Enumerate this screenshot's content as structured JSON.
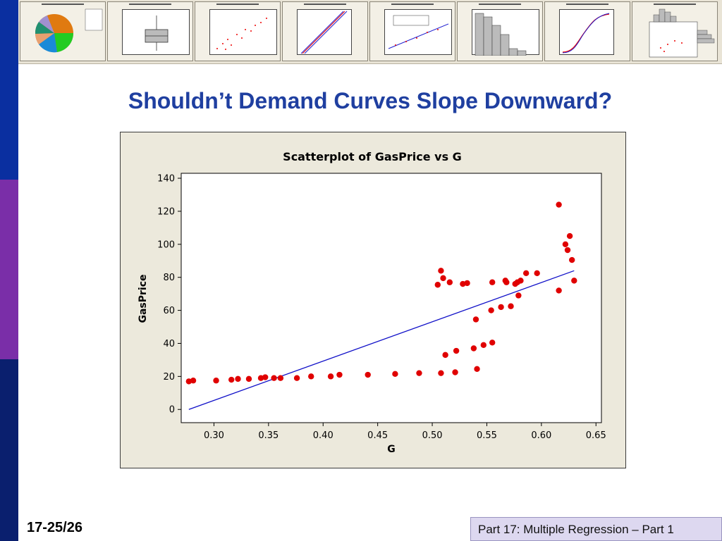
{
  "slide": {
    "title": "Shouldn’t Demand Curves Slope Downward?",
    "page_number": "17-25/26",
    "footer": "Part 17: Multiple Regression – Part 1"
  },
  "colors": {
    "title_blue": "#1f3fa0",
    "sidebar_blue": "#0a2fa0",
    "sidebar_purple": "#7a2ea8",
    "sidebar_navy": "#0a1f6e",
    "point_red": "#e00000",
    "fit_line_blue": "#1010c8"
  },
  "thumbnails": {
    "count": 8,
    "icons": [
      "pie-chart-icon",
      "boxplot-icon",
      "scatterplot-icon",
      "probability-plot-icon",
      "regression-scatterplot-icon",
      "histogram-icon",
      "empirical-cdf-icon",
      "marginal-plot-icon"
    ]
  },
  "chart_data": {
    "type": "scatter",
    "title": "Scatterplot of GasPrice vs G",
    "xlabel": "G",
    "ylabel": "GasPrice",
    "xlim": [
      0.27,
      0.655
    ],
    "ylim": [
      -8,
      143
    ],
    "xticks": [
      0.3,
      0.35,
      0.4,
      0.45,
      0.5,
      0.55,
      0.6,
      0.65
    ],
    "xtick_labels": [
      "0.30",
      "0.35",
      "0.40",
      "0.45",
      "0.50",
      "0.55",
      "0.60",
      "0.65"
    ],
    "yticks": [
      0,
      20,
      40,
      60,
      80,
      100,
      120,
      140
    ],
    "ytick_labels": [
      "0",
      "20",
      "40",
      "60",
      "80",
      "100",
      "120",
      "140"
    ],
    "grid": false,
    "points": [
      [
        0.277,
        17
      ],
      [
        0.281,
        17.5
      ],
      [
        0.302,
        17.5
      ],
      [
        0.316,
        18
      ],
      [
        0.322,
        18.5
      ],
      [
        0.332,
        18.5
      ],
      [
        0.343,
        19
      ],
      [
        0.347,
        19.5
      ],
      [
        0.355,
        19
      ],
      [
        0.361,
        19
      ],
      [
        0.376,
        19
      ],
      [
        0.389,
        20
      ],
      [
        0.407,
        20
      ],
      [
        0.415,
        21
      ],
      [
        0.441,
        21
      ],
      [
        0.466,
        21.5
      ],
      [
        0.488,
        22
      ],
      [
        0.508,
        22
      ],
      [
        0.521,
        22.5
      ],
      [
        0.541,
        24.5
      ],
      [
        0.512,
        33
      ],
      [
        0.522,
        35.5
      ],
      [
        0.538,
        37
      ],
      [
        0.547,
        39
      ],
      [
        0.555,
        40.5
      ],
      [
        0.54,
        54.5
      ],
      [
        0.554,
        60
      ],
      [
        0.563,
        62
      ],
      [
        0.572,
        62.5
      ],
      [
        0.579,
        69
      ],
      [
        0.616,
        72
      ],
      [
        0.505,
        75.5
      ],
      [
        0.508,
        84
      ],
      [
        0.51,
        79.5
      ],
      [
        0.516,
        77
      ],
      [
        0.528,
        76
      ],
      [
        0.532,
        76.5
      ],
      [
        0.555,
        77
      ],
      [
        0.567,
        78
      ],
      [
        0.568,
        77
      ],
      [
        0.576,
        76
      ],
      [
        0.578,
        77
      ],
      [
        0.581,
        78
      ],
      [
        0.586,
        82.5
      ],
      [
        0.596,
        82.5
      ],
      [
        0.63,
        78
      ],
      [
        0.616,
        124
      ],
      [
        0.622,
        100
      ],
      [
        0.624,
        96.5
      ],
      [
        0.626,
        105
      ],
      [
        0.628,
        90.5
      ]
    ],
    "fit_line": {
      "x": [
        0.277,
        0.63
      ],
      "y": [
        0,
        84
      ]
    }
  }
}
